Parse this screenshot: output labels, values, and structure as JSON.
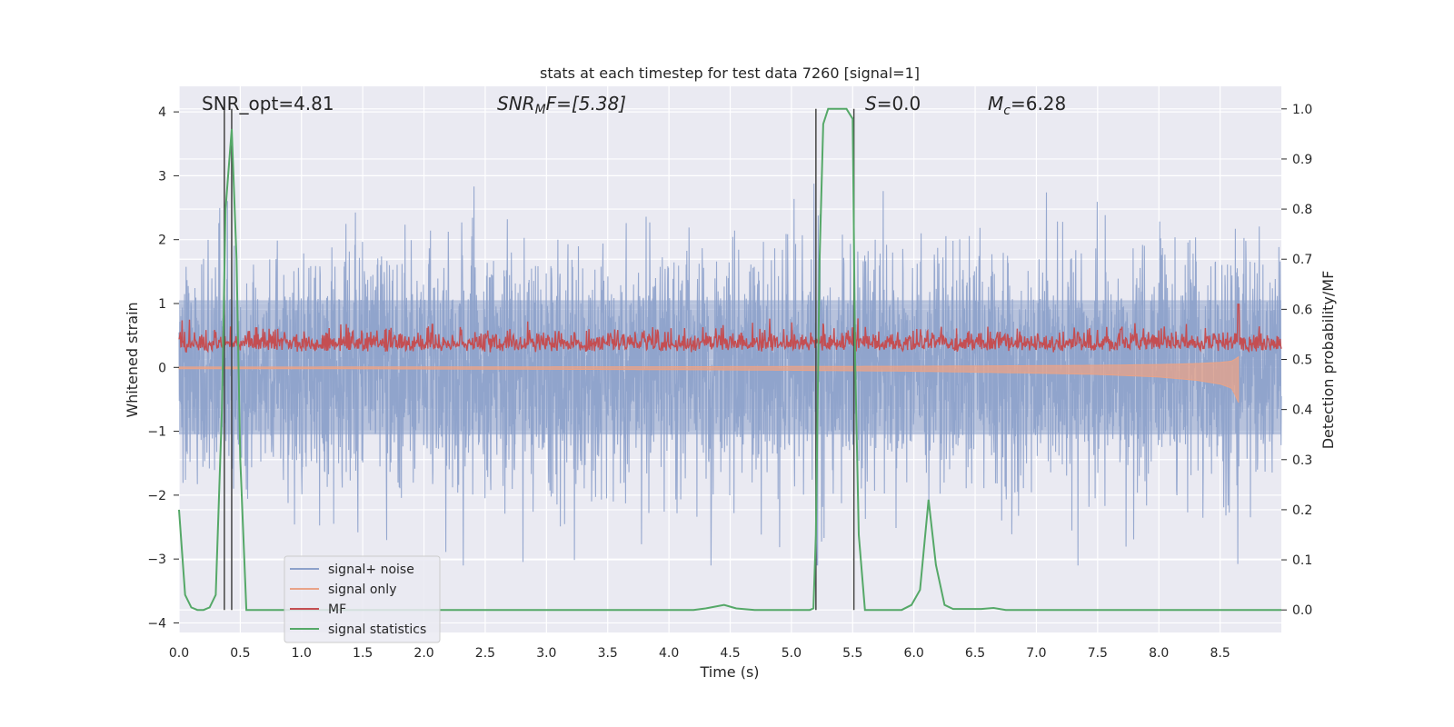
{
  "chart_data": {
    "type": "line",
    "title": "stats at each timestep for test data 7260 [signal=1]",
    "xlabel": "Time (s)",
    "ylabel_left": "Whitened strain",
    "ylabel_right": "Detection probability/MF",
    "xlim": [
      0.0,
      9.0
    ],
    "ylim_left": [
      -4.15,
      4.4
    ],
    "ylim_right": [
      -0.045,
      1.045
    ],
    "x_ticks": [
      "0.0",
      "0.5",
      "1.0",
      "1.5",
      "2.0",
      "2.5",
      "3.0",
      "3.5",
      "4.0",
      "4.5",
      "5.0",
      "5.5",
      "6.0",
      "6.5",
      "7.0",
      "7.5",
      "8.0",
      "8.5"
    ],
    "y_ticks_left": [
      "4",
      "3",
      "2",
      "1",
      "0",
      "−1",
      "−2",
      "−3",
      "−4"
    ],
    "y_ticks_right": [
      "1.0",
      "0.9",
      "0.8",
      "0.7",
      "0.6",
      "0.5",
      "0.4",
      "0.3",
      "0.2",
      "0.1",
      "0.0"
    ],
    "grid": true,
    "legend_position": "lower-left",
    "annotations": {
      "snr_opt": "SNR_opt=4.81",
      "snr_mf_prefix": "SNR",
      "snr_mf_sub": "M",
      "snr_mf_suffix": "F=[5.38]",
      "s_prefix": "S",
      "s_suffix": "=0.0",
      "mc_prefix": "M",
      "mc_sub": "c",
      "mc_suffix": "=6.28"
    },
    "vertical_lines_x": [
      0.37,
      0.43,
      5.2,
      5.51
    ],
    "series": [
      {
        "name": "signal+ noise",
        "color": "#8da1cb",
        "axis": "left",
        "description": "whitened strain noise spanning roughly -3.1 to 3.6 across 0–9 s"
      },
      {
        "name": "signal only",
        "color": "#e9a388",
        "axis": "left",
        "envelope": {
          "x": [
            0.0,
            1.0,
            2.0,
            3.0,
            4.0,
            5.0,
            6.0,
            7.0,
            7.5,
            8.0,
            8.3,
            8.5,
            8.6,
            8.65
          ],
          "amp": [
            0.02,
            0.02,
            0.025,
            0.03,
            0.035,
            0.045,
            0.06,
            0.09,
            0.11,
            0.15,
            0.2,
            0.26,
            0.33,
            0.55
          ]
        }
      },
      {
        "name": "MF",
        "color": "#c44e52",
        "axis": "right",
        "description": "matched filter output between about 0.5 and 0.6, spikes to 0.57 near 2.07 s, 0.56 near 7.69 s, 0.61 near 8.65 s"
      },
      {
        "name": "signal statistics",
        "color": "#55a868",
        "axis": "right",
        "x": [
          0.0,
          0.05,
          0.1,
          0.15,
          0.2,
          0.25,
          0.3,
          0.35,
          0.38,
          0.43,
          0.47,
          0.5,
          0.55,
          0.6,
          0.7,
          1.0,
          2.0,
          3.0,
          4.0,
          4.2,
          4.3,
          4.45,
          4.55,
          4.7,
          5.0,
          5.1,
          5.15,
          5.18,
          5.2,
          5.23,
          5.26,
          5.3,
          5.35,
          5.45,
          5.5,
          5.52,
          5.55,
          5.6,
          5.62,
          5.7,
          5.9,
          5.98,
          6.05,
          6.12,
          6.18,
          6.25,
          6.32,
          6.4,
          6.55,
          6.65,
          6.75,
          7.0,
          8.0,
          9.0
        ],
        "y": [
          0.2,
          0.03,
          0.005,
          0.0,
          0.0,
          0.005,
          0.03,
          0.4,
          0.8,
          0.96,
          0.7,
          0.3,
          0.0,
          0.0,
          0.0,
          0.0,
          0.0,
          0.0,
          0.0,
          0.0,
          0.003,
          0.01,
          0.003,
          0.0,
          0.0,
          0.0,
          0.0,
          0.003,
          0.15,
          0.7,
          0.97,
          1.0,
          1.0,
          1.0,
          0.98,
          0.5,
          0.15,
          0.0,
          0.0,
          0.0,
          0.0,
          0.01,
          0.04,
          0.22,
          0.09,
          0.01,
          0.002,
          0.002,
          0.002,
          0.004,
          0.0,
          0.0,
          0.0,
          0.0
        ]
      }
    ]
  }
}
